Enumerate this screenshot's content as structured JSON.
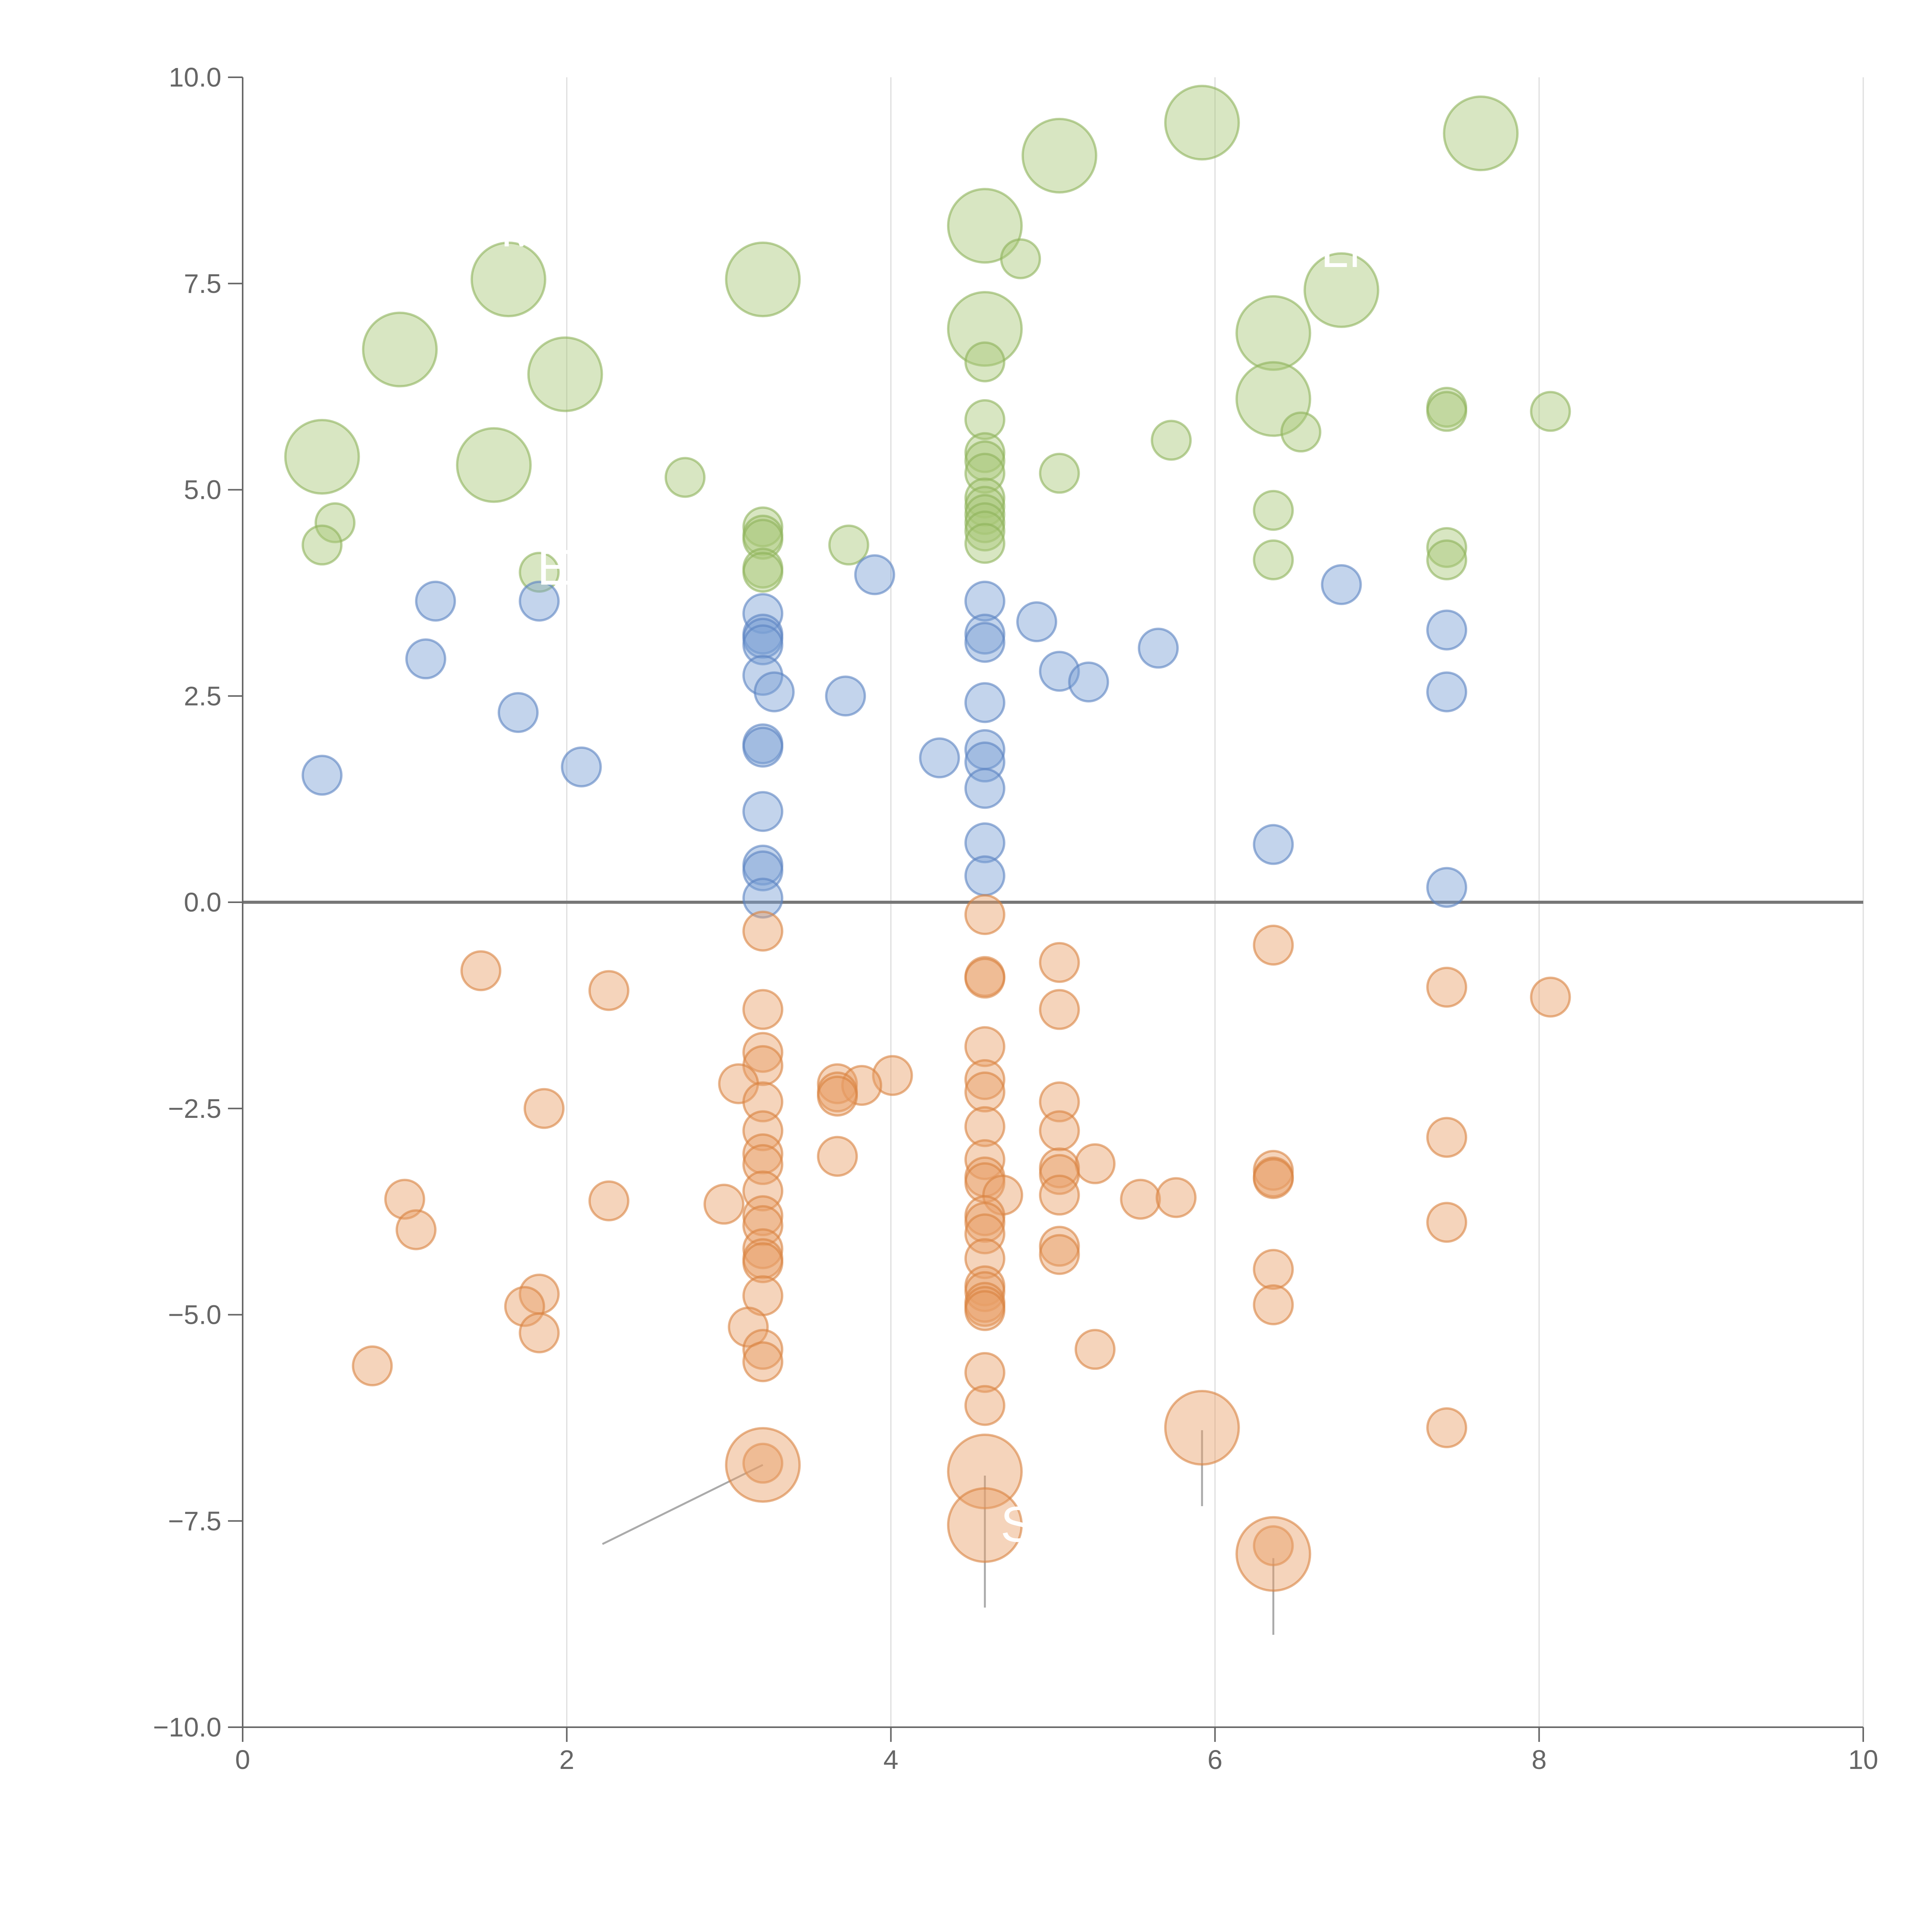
{
  "chart_data": {
    "type": "scatter",
    "subtype": "bubble",
    "title": "",
    "xlabel": "",
    "ylabel": "",
    "xlim": [
      0,
      10
    ],
    "ylim": [
      -10,
      10
    ],
    "x_ticks": [
      0,
      2,
      4,
      6,
      8,
      10
    ],
    "x_tick_labels": [
      "0",
      "2",
      "4",
      "6",
      "8",
      "10"
    ],
    "y_ticks": [
      -10,
      -7.5,
      -5,
      -2.5,
      0,
      2.5,
      5,
      7.5,
      10
    ],
    "y_tick_labels": [
      "−10.0",
      "−7.5",
      "−5.0",
      "−2.5",
      "0.0",
      "2.5",
      "5.0",
      "7.5",
      "10.0"
    ],
    "vertical_grid": true,
    "zero_line": true,
    "legend": "none",
    "colors": {
      "green_fill": "#a8c878",
      "green_stroke": "#8db35a",
      "blue_fill": "#7b9fd4",
      "blue_stroke": "#5a82c2",
      "orange_fill": "#e8a068",
      "orange_stroke": "#d9823f",
      "axis": "#666666",
      "grid": "#dddddd",
      "zero_line": "#777777",
      "leader": "#aaaaaa"
    },
    "series": [
      {
        "name": "green",
        "fill_key": "green_fill",
        "stroke_key": "green_stroke",
        "points": [
          {
            "x": 5.92,
            "y": 9.45,
            "size": 3
          },
          {
            "x": 7.64,
            "y": 9.32,
            "size": 3
          },
          {
            "x": 5.04,
            "y": 9.05,
            "size": 3
          },
          {
            "x": 4.58,
            "y": 8.2,
            "size": 3
          },
          {
            "x": 4.8,
            "y": 7.8,
            "size": 1
          },
          {
            "x": 1.64,
            "y": 7.55,
            "size": 3
          },
          {
            "x": 3.21,
            "y": 7.55,
            "size": 3
          },
          {
            "x": 6.78,
            "y": 7.42,
            "size": 3
          },
          {
            "x": 4.58,
            "y": 6.95,
            "size": 3
          },
          {
            "x": 6.36,
            "y": 6.9,
            "size": 3
          },
          {
            "x": 0.97,
            "y": 6.7,
            "size": 3
          },
          {
            "x": 4.58,
            "y": 6.55,
            "size": 1
          },
          {
            "x": 1.99,
            "y": 6.4,
            "size": 3
          },
          {
            "x": 6.36,
            "y": 6.1,
            "size": 3
          },
          {
            "x": 7.43,
            "y": 6.0,
            "size": 1
          },
          {
            "x": 7.43,
            "y": 5.95,
            "size": 1
          },
          {
            "x": 8.07,
            "y": 5.95,
            "size": 1
          },
          {
            "x": 4.58,
            "y": 5.85,
            "size": 1
          },
          {
            "x": 6.53,
            "y": 5.7,
            "size": 1
          },
          {
            "x": 5.73,
            "y": 5.6,
            "size": 1
          },
          {
            "x": 4.58,
            "y": 5.45,
            "size": 1
          },
          {
            "x": 4.58,
            "y": 5.35,
            "size": 1
          },
          {
            "x": 0.49,
            "y": 5.4,
            "size": 3
          },
          {
            "x": 1.55,
            "y": 5.3,
            "size": 3
          },
          {
            "x": 4.58,
            "y": 5.2,
            "size": 1
          },
          {
            "x": 5.04,
            "y": 5.2,
            "size": 1
          },
          {
            "x": 2.73,
            "y": 5.15,
            "size": 1
          },
          {
            "x": 4.58,
            "y": 4.9,
            "size": 1
          },
          {
            "x": 4.58,
            "y": 4.8,
            "size": 1
          },
          {
            "x": 6.36,
            "y": 4.75,
            "size": 1
          },
          {
            "x": 4.58,
            "y": 4.7,
            "size": 1
          },
          {
            "x": 4.58,
            "y": 4.6,
            "size": 1
          },
          {
            "x": 0.57,
            "y": 4.6,
            "size": 1
          },
          {
            "x": 3.21,
            "y": 4.55,
            "size": 1
          },
          {
            "x": 4.58,
            "y": 4.5,
            "size": 1
          },
          {
            "x": 3.21,
            "y": 4.45,
            "size": 1
          },
          {
            "x": 3.21,
            "y": 4.4,
            "size": 1
          },
          {
            "x": 4.58,
            "y": 4.35,
            "size": 1
          },
          {
            "x": 0.49,
            "y": 4.33,
            "size": 1
          },
          {
            "x": 3.74,
            "y": 4.33,
            "size": 1
          },
          {
            "x": 7.43,
            "y": 4.3,
            "size": 1
          },
          {
            "x": 6.36,
            "y": 4.15,
            "size": 1
          },
          {
            "x": 7.43,
            "y": 4.15,
            "size": 1
          },
          {
            "x": 3.21,
            "y": 4.05,
            "size": 1
          },
          {
            "x": 3.21,
            "y": 4.0,
            "size": 1
          },
          {
            "x": 1.83,
            "y": 4.0,
            "size": 1
          }
        ]
      },
      {
        "name": "blue",
        "fill_key": "blue_fill",
        "stroke_key": "blue_stroke",
        "points": [
          {
            "x": 3.9,
            "y": 3.97,
            "size": 1
          },
          {
            "x": 6.78,
            "y": 3.85,
            "size": 1
          },
          {
            "x": 1.19,
            "y": 3.65,
            "size": 1
          },
          {
            "x": 1.83,
            "y": 3.65,
            "size": 1
          },
          {
            "x": 4.58,
            "y": 3.65,
            "size": 1
          },
          {
            "x": 3.21,
            "y": 3.5,
            "size": 1
          },
          {
            "x": 4.9,
            "y": 3.4,
            "size": 1
          },
          {
            "x": 7.43,
            "y": 3.3,
            "size": 1
          },
          {
            "x": 3.21,
            "y": 3.25,
            "size": 1
          },
          {
            "x": 4.58,
            "y": 3.25,
            "size": 1
          },
          {
            "x": 3.21,
            "y": 3.2,
            "size": 1
          },
          {
            "x": 4.58,
            "y": 3.15,
            "size": 1
          },
          {
            "x": 3.21,
            "y": 3.12,
            "size": 1
          },
          {
            "x": 5.65,
            "y": 3.08,
            "size": 1
          },
          {
            "x": 1.13,
            "y": 2.95,
            "size": 1
          },
          {
            "x": 5.04,
            "y": 2.8,
            "size": 1
          },
          {
            "x": 3.21,
            "y": 2.75,
            "size": 1
          },
          {
            "x": 5.22,
            "y": 2.67,
            "size": 1
          },
          {
            "x": 3.28,
            "y": 2.55,
            "size": 1
          },
          {
            "x": 7.43,
            "y": 2.55,
            "size": 1
          },
          {
            "x": 3.72,
            "y": 2.5,
            "size": 1
          },
          {
            "x": 4.58,
            "y": 2.42,
            "size": 1
          },
          {
            "x": 1.7,
            "y": 2.3,
            "size": 1
          },
          {
            "x": 3.21,
            "y": 1.92,
            "size": 1
          },
          {
            "x": 3.21,
            "y": 1.88,
            "size": 1
          },
          {
            "x": 4.58,
            "y": 1.85,
            "size": 1
          },
          {
            "x": 4.3,
            "y": 1.75,
            "size": 1
          },
          {
            "x": 4.58,
            "y": 1.7,
            "size": 1
          },
          {
            "x": 2.09,
            "y": 1.64,
            "size": 1
          },
          {
            "x": 0.49,
            "y": 1.54,
            "size": 1
          },
          {
            "x": 4.58,
            "y": 1.38,
            "size": 1
          },
          {
            "x": 3.21,
            "y": 1.1,
            "size": 1
          },
          {
            "x": 4.58,
            "y": 0.72,
            "size": 1
          },
          {
            "x": 6.36,
            "y": 0.7,
            "size": 1
          },
          {
            "x": 3.21,
            "y": 0.45,
            "size": 1
          },
          {
            "x": 3.21,
            "y": 0.38,
            "size": 1
          },
          {
            "x": 4.58,
            "y": 0.32,
            "size": 1
          },
          {
            "x": 7.43,
            "y": 0.18,
            "size": 1
          },
          {
            "x": 3.21,
            "y": 0.05,
            "size": 1
          }
        ]
      },
      {
        "name": "orange",
        "fill_key": "orange_fill",
        "stroke_key": "orange_stroke",
        "points": [
          {
            "x": 4.58,
            "y": -0.15,
            "size": 1
          },
          {
            "x": 3.21,
            "y": -0.35,
            "size": 1
          },
          {
            "x": 6.36,
            "y": -0.52,
            "size": 1
          },
          {
            "x": 5.04,
            "y": -0.73,
            "size": 1
          },
          {
            "x": 1.47,
            "y": -0.83,
            "size": 1
          },
          {
            "x": 4.58,
            "y": -0.9,
            "size": 1
          },
          {
            "x": 4.58,
            "y": -0.92,
            "size": 1
          },
          {
            "x": 7.43,
            "y": -1.03,
            "size": 1
          },
          {
            "x": 2.26,
            "y": -1.07,
            "size": 1
          },
          {
            "x": 8.07,
            "y": -1.15,
            "size": 1
          },
          {
            "x": 3.21,
            "y": -1.3,
            "size": 1
          },
          {
            "x": 5.04,
            "y": -1.3,
            "size": 1
          },
          {
            "x": 4.58,
            "y": -1.75,
            "size": 1
          },
          {
            "x": 3.21,
            "y": -1.82,
            "size": 1
          },
          {
            "x": 3.21,
            "y": -1.98,
            "size": 1
          },
          {
            "x": 4.01,
            "y": -2.1,
            "size": 1
          },
          {
            "x": 4.58,
            "y": -2.15,
            "size": 1
          },
          {
            "x": 3.06,
            "y": -2.2,
            "size": 1
          },
          {
            "x": 3.67,
            "y": -2.2,
            "size": 1
          },
          {
            "x": 3.82,
            "y": -2.22,
            "size": 1
          },
          {
            "x": 3.67,
            "y": -2.3,
            "size": 1
          },
          {
            "x": 4.58,
            "y": -2.3,
            "size": 1
          },
          {
            "x": 3.67,
            "y": -2.35,
            "size": 1
          },
          {
            "x": 3.21,
            "y": -2.42,
            "size": 1
          },
          {
            "x": 5.04,
            "y": -2.42,
            "size": 1
          },
          {
            "x": 1.86,
            "y": -2.5,
            "size": 1
          },
          {
            "x": 4.58,
            "y": -2.72,
            "size": 1
          },
          {
            "x": 3.21,
            "y": -2.77,
            "size": 1
          },
          {
            "x": 5.04,
            "y": -2.77,
            "size": 1
          },
          {
            "x": 7.43,
            "y": -2.85,
            "size": 1
          },
          {
            "x": 3.21,
            "y": -3.05,
            "size": 1
          },
          {
            "x": 3.67,
            "y": -3.08,
            "size": 1
          },
          {
            "x": 4.58,
            "y": -3.12,
            "size": 1
          },
          {
            "x": 3.21,
            "y": -3.18,
            "size": 1
          },
          {
            "x": 5.26,
            "y": -3.17,
            "size": 1
          },
          {
            "x": 5.04,
            "y": -3.22,
            "size": 1
          },
          {
            "x": 6.36,
            "y": -3.25,
            "size": 1
          },
          {
            "x": 5.04,
            "y": -3.3,
            "size": 1
          },
          {
            "x": 4.58,
            "y": -3.33,
            "size": 1
          },
          {
            "x": 6.36,
            "y": -3.33,
            "size": 1
          },
          {
            "x": 6.36,
            "y": -3.35,
            "size": 1
          },
          {
            "x": 4.58,
            "y": -3.4,
            "size": 1
          },
          {
            "x": 3.21,
            "y": -3.5,
            "size": 1
          },
          {
            "x": 4.69,
            "y": -3.55,
            "size": 1
          },
          {
            "x": 5.04,
            "y": -3.55,
            "size": 1
          },
          {
            "x": 1.0,
            "y": -3.6,
            "size": 1
          },
          {
            "x": 5.54,
            "y": -3.6,
            "size": 1
          },
          {
            "x": 5.76,
            "y": -3.58,
            "size": 1
          },
          {
            "x": 2.26,
            "y": -3.62,
            "size": 1
          },
          {
            "x": 2.97,
            "y": -3.66,
            "size": 1
          },
          {
            "x": 3.21,
            "y": -3.8,
            "size": 1
          },
          {
            "x": 4.58,
            "y": -3.8,
            "size": 1
          },
          {
            "x": 4.58,
            "y": -3.88,
            "size": 1
          },
          {
            "x": 7.43,
            "y": -3.88,
            "size": 1
          },
          {
            "x": 3.21,
            "y": -3.92,
            "size": 1
          },
          {
            "x": 1.07,
            "y": -3.97,
            "size": 1
          },
          {
            "x": 4.58,
            "y": -4.02,
            "size": 1
          },
          {
            "x": 5.04,
            "y": -4.17,
            "size": 1
          },
          {
            "x": 3.21,
            "y": -4.2,
            "size": 1
          },
          {
            "x": 5.04,
            "y": -4.27,
            "size": 1
          },
          {
            "x": 3.21,
            "y": -4.32,
            "size": 1
          },
          {
            "x": 4.58,
            "y": -4.32,
            "size": 1
          },
          {
            "x": 3.21,
            "y": -4.37,
            "size": 1
          },
          {
            "x": 6.36,
            "y": -4.45,
            "size": 1
          },
          {
            "x": 4.58,
            "y": -4.65,
            "size": 1
          },
          {
            "x": 4.58,
            "y": -4.72,
            "size": 1
          },
          {
            "x": 1.83,
            "y": -4.75,
            "size": 1
          },
          {
            "x": 3.21,
            "y": -4.77,
            "size": 1
          },
          {
            "x": 4.58,
            "y": -4.85,
            "size": 1
          },
          {
            "x": 6.36,
            "y": -4.88,
            "size": 1
          },
          {
            "x": 1.74,
            "y": -4.9,
            "size": 1
          },
          {
            "x": 4.58,
            "y": -4.9,
            "size": 1
          },
          {
            "x": 4.58,
            "y": -4.95,
            "size": 1
          },
          {
            "x": 3.12,
            "y": -5.15,
            "size": 1
          },
          {
            "x": 1.83,
            "y": -5.22,
            "size": 1
          },
          {
            "x": 3.21,
            "y": -5.42,
            "size": 1
          },
          {
            "x": 5.26,
            "y": -5.42,
            "size": 1
          },
          {
            "x": 3.21,
            "y": -5.57,
            "size": 1
          },
          {
            "x": 0.8,
            "y": -5.62,
            "size": 1
          },
          {
            "x": 4.58,
            "y": -5.7,
            "size": 1
          },
          {
            "x": 4.58,
            "y": -6.1,
            "size": 1
          },
          {
            "x": 7.43,
            "y": -6.37,
            "size": 1
          },
          {
            "x": 5.92,
            "y": -6.37,
            "size": 3
          },
          {
            "x": 3.21,
            "y": -6.8,
            "size": 1
          },
          {
            "x": 3.21,
            "y": -6.82,
            "size": 3
          },
          {
            "x": 4.58,
            "y": -6.9,
            "size": 3
          },
          {
            "x": 4.58,
            "y": -7.55,
            "size": 3
          },
          {
            "x": 6.36,
            "y": -7.8,
            "size": 1
          },
          {
            "x": 6.36,
            "y": -7.9,
            "size": 3
          }
        ]
      }
    ],
    "annotations": [
      {
        "text": "M",
        "x": 1.72,
        "y": 7.95
      },
      {
        "text": "LN",
        "x": 6.85,
        "y": 7.7
      },
      {
        "text": "E",
        "x": 1.92,
        "y": 3.85
      },
      {
        "text": "S",
        "x": 4.78,
        "y": -7.75
      }
    ],
    "leader_lines": [
      {
        "x1": 3.21,
        "y1": -6.82,
        "x2": 2.22,
        "y2": -7.78
      },
      {
        "x1": 4.58,
        "y1": -6.95,
        "x2": 4.58,
        "y2": -8.55
      },
      {
        "x1": 5.92,
        "y1": -6.4,
        "x2": 5.92,
        "y2": -7.32
      },
      {
        "x1": 6.36,
        "y1": -7.95,
        "x2": 6.36,
        "y2": -8.88
      }
    ]
  }
}
